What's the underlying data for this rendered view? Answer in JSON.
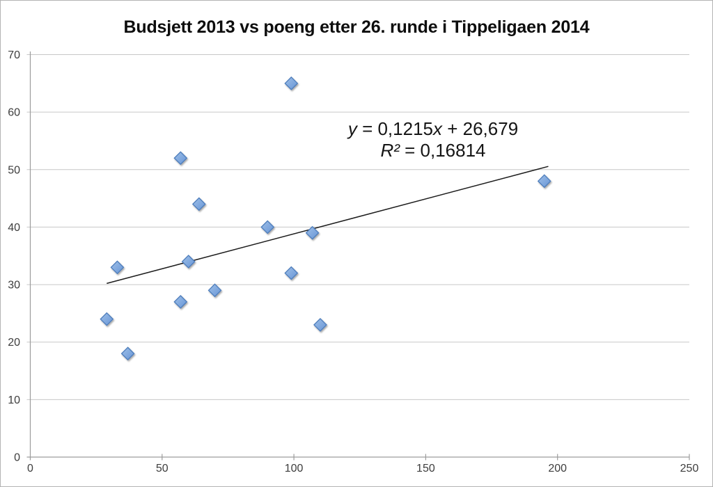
{
  "title": "Budsjett 2013 vs poeng etter 26. runde i Tippeligaen 2014",
  "equation": {
    "y_var": "y",
    "mid": " = 0,1215",
    "x_var": "x",
    "tail": " + 26,679",
    "r2_var": "R²",
    "r2_rest": " = 0,16814"
  },
  "colors": {
    "background": "#ffffff",
    "frame_border": "#b3b3b3",
    "gridline": "#c7c7c7",
    "axis": "#9c9c9c",
    "tick_label": "#3d3d3d",
    "title_text": "#0d0d0d",
    "marker_fill_light": "#9fc0e8",
    "marker_fill_dark": "#6795d6",
    "marker_border": "#4e7dbb",
    "trendline": "#1c1c1c"
  },
  "chart_data": {
    "type": "scatter",
    "title": "Budsjett 2013 vs poeng etter 26. runde i Tippeligaen 2014",
    "xlabel": "",
    "ylabel": "",
    "xlim": [
      0,
      250
    ],
    "ylim": [
      0,
      70
    ],
    "x_ticks": [
      0,
      50,
      100,
      150,
      200,
      250
    ],
    "y_ticks": [
      0,
      10,
      20,
      30,
      40,
      50,
      60,
      70
    ],
    "grid": "horizontal",
    "legend": "none",
    "marker_shape": "diamond",
    "points": [
      [
        29,
        24
      ],
      [
        33,
        33
      ],
      [
        37,
        18
      ],
      [
        57,
        52
      ],
      [
        57,
        27
      ],
      [
        60,
        34
      ],
      [
        64,
        44
      ],
      [
        70,
        29
      ],
      [
        90,
        40
      ],
      [
        99,
        65
      ],
      [
        99,
        32
      ],
      [
        107,
        39
      ],
      [
        110,
        23
      ],
      [
        195,
        48
      ]
    ],
    "trendline": {
      "type": "linear",
      "slope": 0.1215,
      "intercept": 26.679,
      "r2": 0.16814,
      "x_start": 29,
      "x_end": 196.5,
      "equation_label": "y = 0,1215x + 26,679",
      "r2_label": "R² = 0,16814"
    }
  }
}
